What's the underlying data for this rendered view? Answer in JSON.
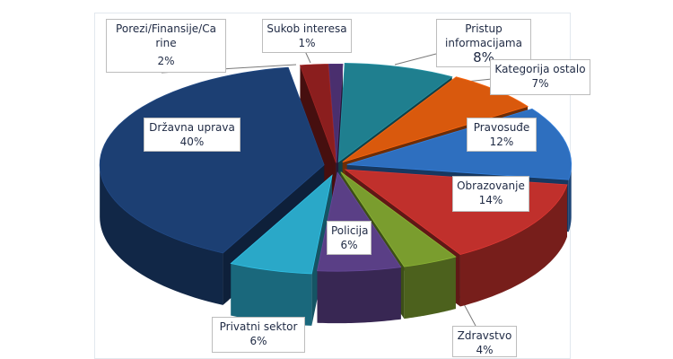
{
  "chart_data": {
    "type": "pie",
    "style": "3d-exploded",
    "title": "",
    "slices": [
      {
        "label": "Sukob interesa",
        "value": 1,
        "pct_label": "1%",
        "color": "#4a2f6e"
      },
      {
        "label": "Pristup informacijama",
        "value": 8,
        "pct_label": "8%",
        "color": "#1f7f8f"
      },
      {
        "label": "Kategorija ostalo",
        "value": 7,
        "pct_label": "7%",
        "color": "#d9590d"
      },
      {
        "label": "Pravosuđe",
        "value": 12,
        "pct_label": "12%",
        "color": "#2e6fbf"
      },
      {
        "label": "Obrazovanje",
        "value": 14,
        "pct_label": "14%",
        "color": "#c0302c"
      },
      {
        "label": "Zdravstvo",
        "value": 4,
        "pct_label": "4%",
        "color": "#7a9d2e"
      },
      {
        "label": "Policija",
        "value": 6,
        "pct_label": "6%",
        "color": "#5a3f86"
      },
      {
        "label": "Privatni sektor",
        "value": 6,
        "pct_label": "6%",
        "color": "#2aa8c8"
      },
      {
        "label": "Državna uprava",
        "value": 40,
        "pct_label": "40%",
        "color": "#1c3f73"
      },
      {
        "label": "Porezi/Finansije/Carine",
        "value": 2,
        "pct_label": "2%",
        "color": "#8b1e1e"
      }
    ]
  },
  "labels": {
    "sukob": {
      "name": "Sukob interesa",
      "pct": "1%"
    },
    "pristup": {
      "name": "Pristup informacijama",
      "pct": "8%"
    },
    "kategorija": {
      "name": "Kategorija ostalo",
      "pct": "7%"
    },
    "pravosudje": {
      "name": "Pravosuđe",
      "pct": "12%"
    },
    "obrazovanje": {
      "name": "Obrazovanje",
      "pct": "14%"
    },
    "zdravstvo": {
      "name": "Zdravstvo",
      "pct": "4%"
    },
    "policija": {
      "name": "Policija",
      "pct": "6%"
    },
    "privatni": {
      "name": "Privatni sektor",
      "pct": "6%"
    },
    "drzavna": {
      "name": "Državna uprava",
      "pct": "40%"
    },
    "porezi": {
      "name_line1": "Porezi/Finansije/Ca",
      "name_line2": "rine",
      "pct": "2%"
    }
  }
}
